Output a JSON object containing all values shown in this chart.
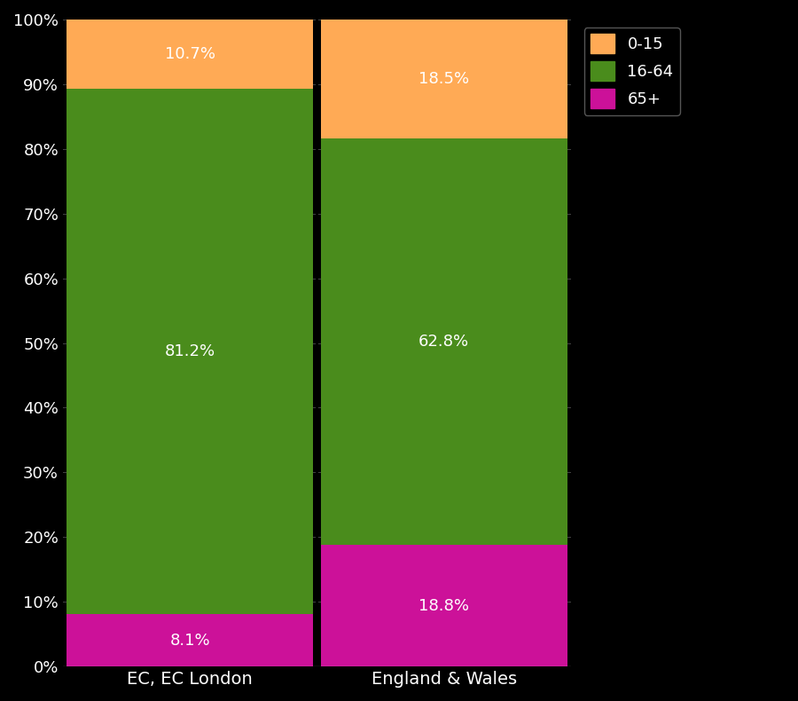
{
  "categories": [
    "EC, EC London",
    "England & Wales"
  ],
  "segments": {
    "65+": [
      8.1,
      18.8
    ],
    "16-64": [
      81.2,
      62.8
    ],
    "0-15": [
      10.7,
      18.5
    ]
  },
  "colors": {
    "65+": "#CC1199",
    "16-64": "#4A8C1C",
    "0-15": "#FFAA55"
  },
  "labels": {
    "65+": [
      "8.1%",
      "18.8%"
    ],
    "16-64": [
      "81.2%",
      "62.8%"
    ],
    "0-15": [
      "10.7%",
      "18.5%"
    ]
  },
  "yticks": [
    0,
    10,
    20,
    30,
    40,
    50,
    60,
    70,
    80,
    90,
    100
  ],
  "ytick_labels": [
    "0%",
    "10%",
    "20%",
    "30%",
    "40%",
    "50%",
    "60%",
    "70%",
    "80%",
    "90%",
    "100%"
  ],
  "background_color": "#000000",
  "text_color": "#ffffff",
  "bar_edge_color": "#000000",
  "legend_labels": [
    "0-15",
    "16-64",
    "65+"
  ],
  "legend_colors": [
    "#FFAA55",
    "#4A8C1C",
    "#CC1199"
  ],
  "label_fontsize": 13,
  "tick_fontsize": 13,
  "axis_label_fontsize": 14,
  "legend_fontsize": 13,
  "bar_width": 0.97,
  "divider_color": "#000000",
  "grid_color": "#444444"
}
